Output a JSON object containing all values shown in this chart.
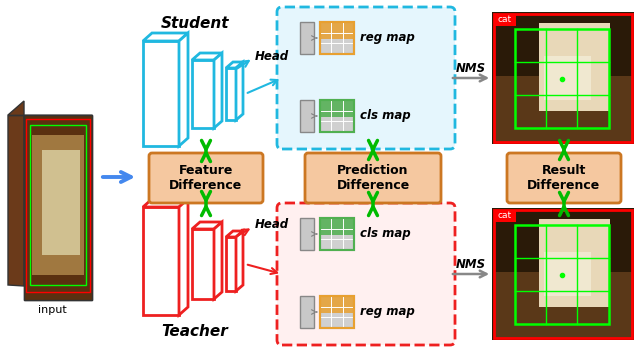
{
  "student_label": "Student",
  "teacher_label": "Teacher",
  "input_label": "input",
  "head_label_s": "Head",
  "head_label_t": "Head",
  "nms_label": "NMS",
  "feature_diff_label": "Feature\nDifference",
  "prediction_diff_label": "Prediction\nDifference",
  "result_diff_label": "Result\nDifference",
  "reg_map_label": "reg map",
  "cls_map_label": "cls map",
  "student_color": "#20B8E0",
  "teacher_color": "#EE2020",
  "arrow_green": "#00BB00",
  "arrow_blue": "#4488EE",
  "box_orange_fill": "#F5C8A0",
  "box_orange_edge": "#CC7722",
  "reg_map_color": "#E8A030",
  "cls_map_color": "#50B050",
  "nms_arrow_color": "#888888",
  "bg_color": "#FFFFFF",
  "input_dark": "#6B3A1A",
  "input_mid": "#8B5530",
  "input_light": "#C8A878",
  "cat_bg_dark": "#3A2010",
  "cat_bg_light": "#B09070"
}
